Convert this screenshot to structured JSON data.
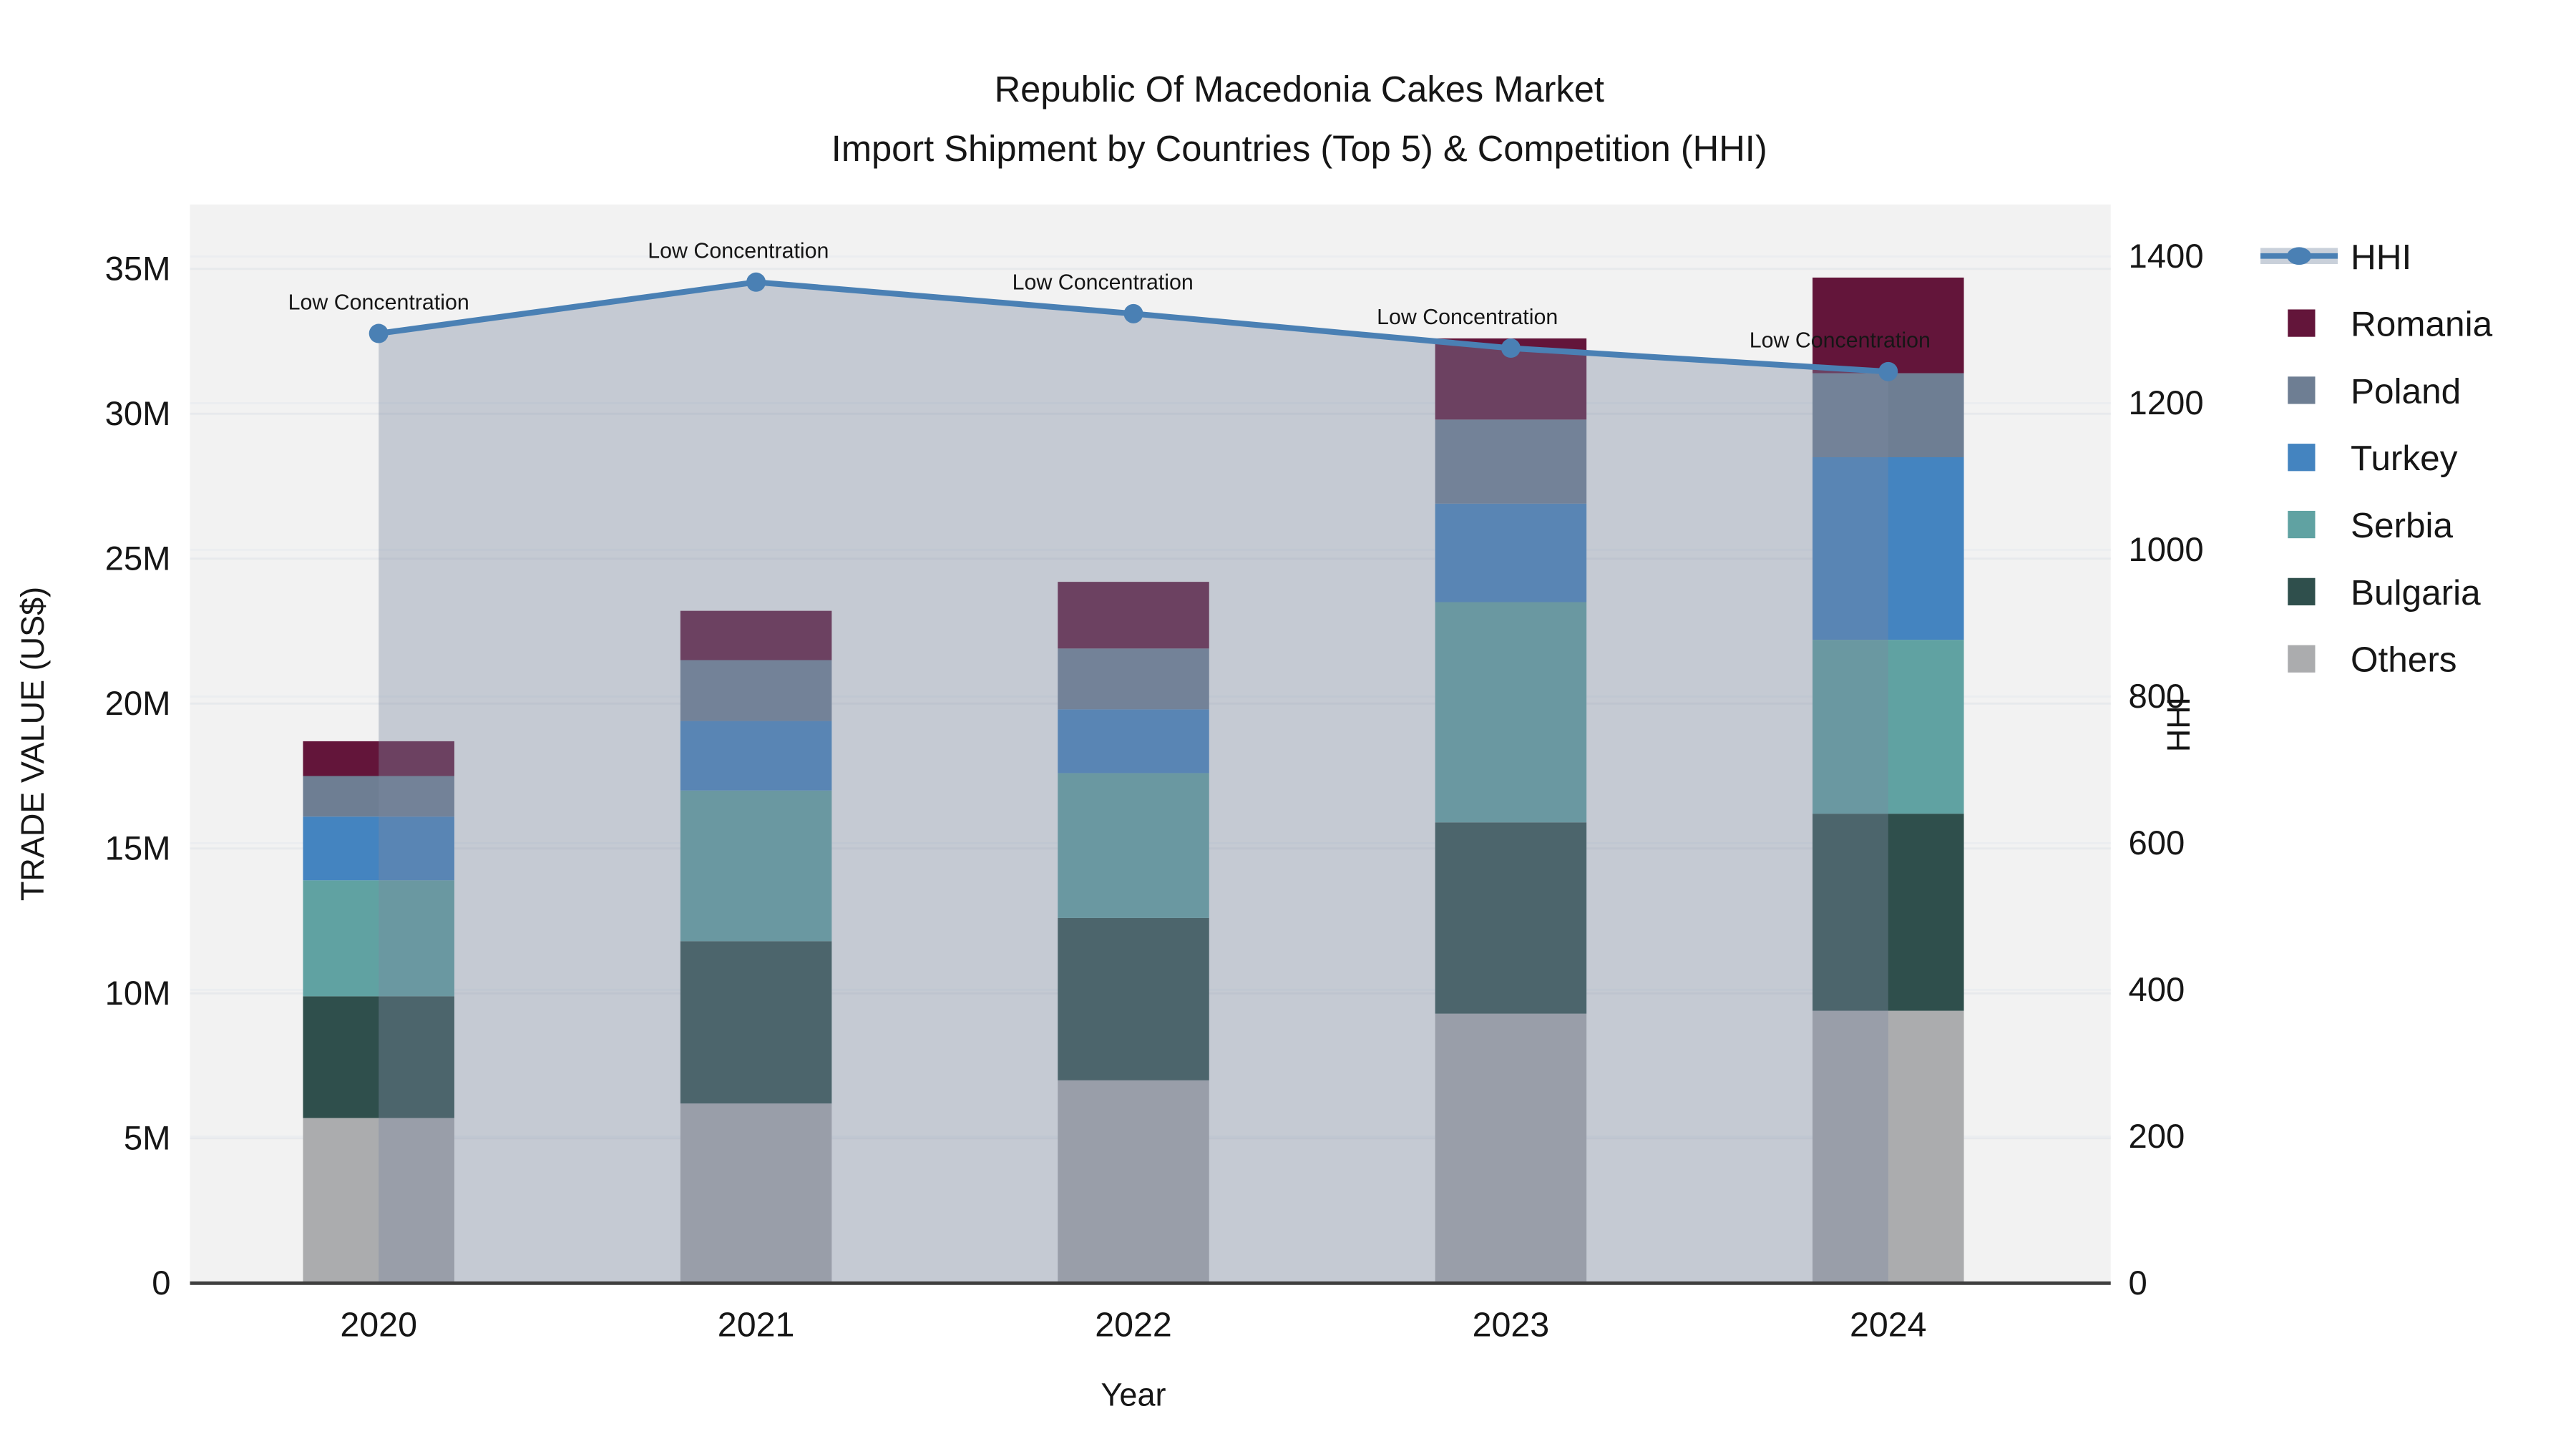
{
  "title": {
    "line1": "Republic Of Macedonia Cakes Market",
    "line2": "Import Shipment by Countries (Top 5) & Competition (HHI)"
  },
  "axes": {
    "x": {
      "title": "Year",
      "ticks": [
        "2020",
        "2021",
        "2022",
        "2023",
        "2024"
      ]
    },
    "y_left": {
      "title": "TRADE VALUE (US$)",
      "ticks": [
        "0",
        "5M",
        "10M",
        "15M",
        "20M",
        "25M",
        "30M",
        "35M"
      ],
      "range_millions": [
        0,
        35
      ]
    },
    "y_right": {
      "title": "HHI",
      "ticks": [
        "0",
        "200",
        "400",
        "600",
        "800",
        "1000",
        "1200",
        "1400"
      ],
      "range": [
        0,
        1400
      ]
    }
  },
  "legend": {
    "items": [
      {
        "label": "HHI",
        "kind": "line",
        "color": "#4a80b4",
        "band_color": "#c9d0da"
      },
      {
        "label": "Romania",
        "kind": "swatch",
        "color": "#63153a"
      },
      {
        "label": "Poland",
        "kind": "swatch",
        "color": "#6e7e93"
      },
      {
        "label": "Turkey",
        "kind": "swatch",
        "color": "#4484c0"
      },
      {
        "label": "Serbia",
        "kind": "swatch",
        "color": "#60a2a2"
      },
      {
        "label": "Bulgaria",
        "kind": "swatch",
        "color": "#2f4f4c"
      },
      {
        "label": "Others",
        "kind": "swatch",
        "color": "#abacae"
      }
    ]
  },
  "chart_data": {
    "type": "combo-stacked-bar-line",
    "categories": [
      "2020",
      "2021",
      "2022",
      "2023",
      "2024"
    ],
    "value_unit_bars": "million US$ (left axis, TRADE VALUE)",
    "value_unit_line": "HHI index (right axis)",
    "stack_order_bottom_to_top": [
      "Others",
      "Bulgaria",
      "Serbia",
      "Turkey",
      "Poland",
      "Romania"
    ],
    "series": [
      {
        "name": "Others",
        "type": "bar",
        "color": "#abacae",
        "values": [
          5.7,
          6.2,
          7.0,
          9.3,
          9.4
        ]
      },
      {
        "name": "Bulgaria",
        "type": "bar",
        "color": "#2f4f4c",
        "values": [
          4.2,
          5.6,
          5.6,
          6.6,
          6.8
        ]
      },
      {
        "name": "Serbia",
        "type": "bar",
        "color": "#60a2a2",
        "values": [
          4.0,
          5.2,
          5.0,
          7.6,
          6.0
        ]
      },
      {
        "name": "Turkey",
        "type": "bar",
        "color": "#4484c0",
        "values": [
          2.2,
          2.4,
          2.2,
          3.4,
          6.3
        ]
      },
      {
        "name": "Poland",
        "type": "bar",
        "color": "#6e7e93",
        "values": [
          1.4,
          2.1,
          2.1,
          2.9,
          2.9
        ]
      },
      {
        "name": "Romania",
        "type": "bar",
        "color": "#63153a",
        "values": [
          1.2,
          1.7,
          2.3,
          2.8,
          3.3
        ]
      },
      {
        "name": "HHI",
        "type": "line",
        "color": "#4a80b4",
        "values": [
          1295,
          1365,
          1322,
          1275,
          1243
        ]
      }
    ],
    "bar_totals_millions": [
      18.7,
      23.2,
      24.2,
      32.6,
      34.7
    ],
    "annotations": [
      "Low Concentration",
      "Low Concentration",
      "Low Concentration",
      "Low Concentration",
      "Low Concentration"
    ],
    "ylim_left_millions": [
      0,
      35
    ],
    "ylim_right": [
      0,
      1400
    ],
    "grid": true,
    "legend_position": "right",
    "style": {
      "plot_bg": "#f2f2f2",
      "figure_bg": "#ffffff",
      "grid_color_left": "#e7e9ec",
      "grid_color_right": "#ebedf0",
      "axis_line": "#3f3f3f",
      "hhi_area_fill": "rgba(124,138,160,0.38)",
      "hhi_line": "#4a80b4",
      "text_color": "#161616"
    }
  }
}
